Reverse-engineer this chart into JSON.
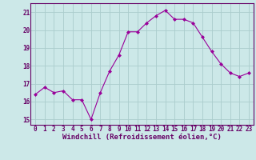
{
  "x": [
    0,
    1,
    2,
    3,
    4,
    5,
    6,
    7,
    8,
    9,
    10,
    11,
    12,
    13,
    14,
    15,
    16,
    17,
    18,
    19,
    20,
    21,
    22,
    23
  ],
  "y": [
    16.4,
    16.8,
    16.5,
    16.6,
    16.1,
    16.1,
    15.0,
    16.5,
    17.7,
    18.6,
    19.9,
    19.9,
    20.4,
    20.8,
    21.1,
    20.6,
    20.6,
    20.4,
    19.6,
    18.8,
    18.1,
    17.6,
    17.4,
    17.6
  ],
  "line_color": "#990099",
  "marker": "D",
  "background_color": "#cce8e8",
  "grid_color": "#aacccc",
  "axis_color": "#660066",
  "xlabel": "Windchill (Refroidissement éolien,°C)",
  "ylim": [
    14.7,
    21.5
  ],
  "xlim": [
    -0.5,
    23.5
  ],
  "yticks": [
    15,
    16,
    17,
    18,
    19,
    20,
    21
  ],
  "xticks": [
    0,
    1,
    2,
    3,
    4,
    5,
    6,
    7,
    8,
    9,
    10,
    11,
    12,
    13,
    14,
    15,
    16,
    17,
    18,
    19,
    20,
    21,
    22,
    23
  ],
  "xtick_labels": [
    "0",
    "1",
    "2",
    "3",
    "4",
    "5",
    "6",
    "7",
    "8",
    "9",
    "10",
    "11",
    "12",
    "13",
    "14",
    "15",
    "16",
    "17",
    "18",
    "19",
    "20",
    "21",
    "22",
    "23"
  ],
  "tick_fontsize": 5.5,
  "xlabel_fontsize": 6.5
}
